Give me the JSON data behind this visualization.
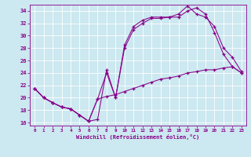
{
  "xlabel": "Windchill (Refroidissement éolien,°C)",
  "bg_color": "#cce8f0",
  "line_color": "#880088",
  "xlim": [
    -0.5,
    23.5
  ],
  "ylim": [
    15.5,
    35.0
  ],
  "xticks": [
    0,
    1,
    2,
    3,
    4,
    5,
    6,
    7,
    8,
    9,
    10,
    11,
    12,
    13,
    14,
    15,
    16,
    17,
    18,
    19,
    20,
    21,
    22,
    23
  ],
  "yticks": [
    16,
    18,
    20,
    22,
    24,
    26,
    28,
    30,
    32,
    34
  ],
  "line1_x": [
    0,
    1,
    2,
    3,
    4,
    5,
    6,
    7,
    8,
    9,
    10,
    11,
    12,
    13,
    14,
    15,
    16,
    17,
    18,
    19,
    20,
    21,
    22,
    23
  ],
  "line1_y": [
    21.5,
    20.0,
    19.2,
    18.5,
    18.2,
    17.2,
    16.2,
    16.5,
    24.5,
    20.0,
    28.5,
    31.5,
    32.5,
    33.0,
    33.0,
    33.0,
    33.5,
    34.8,
    33.5,
    33.0,
    31.5,
    28.0,
    26.5,
    24.2
  ],
  "line2_x": [
    0,
    1,
    2,
    3,
    4,
    5,
    6,
    7,
    8,
    9,
    10,
    11,
    12,
    13,
    14,
    15,
    16,
    17,
    18,
    19,
    20,
    21,
    22,
    23
  ],
  "line2_y": [
    21.5,
    20.0,
    19.2,
    18.5,
    18.2,
    17.2,
    16.2,
    19.8,
    24.0,
    20.0,
    28.0,
    31.0,
    32.0,
    32.8,
    32.8,
    33.0,
    33.0,
    34.0,
    34.5,
    33.5,
    30.5,
    27.0,
    25.0,
    24.0
  ],
  "line3_x": [
    0,
    1,
    2,
    3,
    4,
    5,
    6,
    7,
    8,
    9,
    10,
    11,
    12,
    13,
    14,
    15,
    16,
    17,
    18,
    19,
    20,
    21,
    22,
    23
  ],
  "line3_y": [
    21.5,
    20.0,
    19.2,
    18.5,
    18.2,
    17.2,
    16.2,
    19.8,
    20.2,
    20.5,
    21.0,
    21.5,
    22.0,
    22.5,
    23.0,
    23.2,
    23.5,
    24.0,
    24.2,
    24.5,
    24.5,
    24.8,
    25.0,
    24.0
  ]
}
